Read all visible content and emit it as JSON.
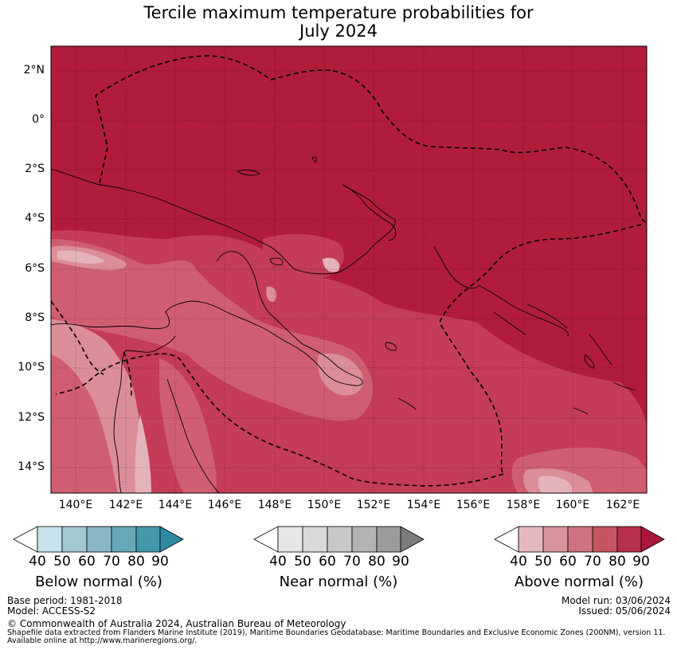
{
  "title": {
    "line1": "Tercile maximum temperature probabilities for",
    "line2": "July 2024"
  },
  "axes": {
    "lat_labels": [
      "2°N",
      "0°",
      "2°S",
      "4°S",
      "6°S",
      "8°S",
      "10°S",
      "12°S",
      "14°S"
    ],
    "lon_labels": [
      "140°E",
      "142°E",
      "144°E",
      "146°E",
      "148°E",
      "150°E",
      "152°E",
      "154°E",
      "156°E",
      "158°E",
      "160°E",
      "162°E"
    ],
    "lat_range": [
      -15,
      3
    ],
    "lon_range": [
      139,
      163
    ]
  },
  "map_colors": {
    "above_90": "#b01c3a",
    "above_80": "#c43c55",
    "above_70": "#cf5f70",
    "above_60": "#dc8e98",
    "above_50": "#e4b3b9"
  },
  "colorbars": [
    {
      "title": "Below normal (%)",
      "ticks": [
        "40",
        "50",
        "60",
        "70",
        "80",
        "90"
      ],
      "colors": [
        "#ffffff",
        "#c7e2ea",
        "#a4c8d0",
        "#88b6c3",
        "#67a8b8",
        "#4399ab",
        "#2f8aa1"
      ]
    },
    {
      "title": "Near normal (%)",
      "ticks": [
        "40",
        "50",
        "60",
        "70",
        "80",
        "90"
      ],
      "colors": [
        "#ffffff",
        "#e6e6e6",
        "#d9d9d9",
        "#c8c8c8",
        "#b3b3b3",
        "#9b9b9b",
        "#7c7c7c"
      ]
    },
    {
      "title": "Above normal (%)",
      "ticks": [
        "40",
        "50",
        "60",
        "70",
        "80",
        "90"
      ],
      "colors": [
        "#ffffff",
        "#e4b9be",
        "#d8949b",
        "#ce727d",
        "#c65563",
        "#b7304b",
        "#a9173a"
      ]
    }
  ],
  "footer": {
    "base_period": "Base period: 1981-2018",
    "model": "Model: ACCESS-S2",
    "model_run": "Model run: 03/06/2024",
    "issued": "Issued: 05/06/2024",
    "copyright": "© Commonwealth of Australia 2024, Australian Bureau of Meteorology",
    "shapefile_line1": "Shapefile data extracted from Flanders Marine Institute (2019), Maritime Boundaries Geodatabase: Maritime Boundaries and Exclusive Economic Zones (200NM), version 11.",
    "shapefile_line2": "Available online at http://www.marineregions.org/."
  }
}
